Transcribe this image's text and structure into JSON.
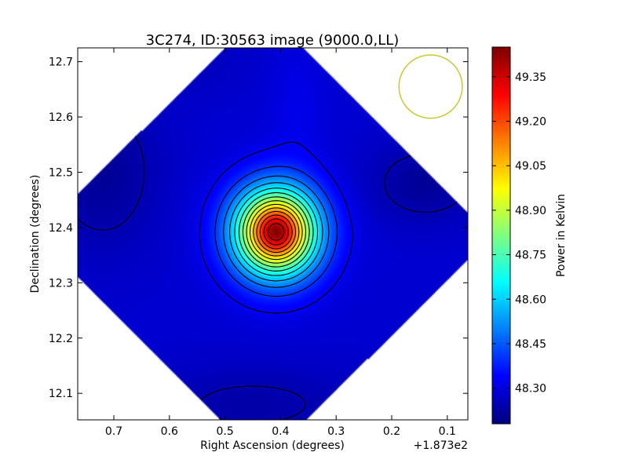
{
  "chart_data": {
    "type": "heatmap",
    "title": "3C274, ID:30563 image (9000.0,LL)",
    "xlabel": "Right Ascension (degrees)",
    "ylabel": "Declination (degrees)",
    "x_offset_label": "+1.873e2",
    "xlim": [
      0.765,
      0.063
    ],
    "ylim": [
      12.052,
      12.725
    ],
    "x_ticks": [
      0.7,
      0.6,
      0.5,
      0.4,
      0.3,
      0.2,
      0.1
    ],
    "x_tick_labels": [
      "0.7",
      "0.6",
      "0.5",
      "0.4",
      "0.3",
      "0.2",
      "0.1"
    ],
    "y_ticks": [
      12.1,
      12.2,
      12.3,
      12.4,
      12.5,
      12.6,
      12.7
    ],
    "y_tick_labels": [
      "12.1",
      "12.2",
      "12.3",
      "12.4",
      "12.5",
      "12.6",
      "12.7"
    ],
    "colorbar": {
      "label": "Power in Kelvin",
      "vmin": 48.18,
      "vmax": 49.45,
      "ticks": [
        48.3,
        48.45,
        48.6,
        48.75,
        48.9,
        49.05,
        49.2,
        49.35
      ],
      "tick_labels": [
        "48.30",
        "48.45",
        "48.60",
        "48.75",
        "48.90",
        "49.05",
        "49.20",
        "49.35"
      ],
      "colormap": "jet"
    },
    "peak": {
      "x": 0.408,
      "y": 12.392,
      "value": 49.45
    },
    "background_value": 48.28,
    "beam_circle": {
      "x": 0.13,
      "y": 12.655,
      "radius_deg": 0.057,
      "color": "#c8c832"
    },
    "contour_count": 15,
    "colors": {
      "contour": "#000000",
      "outside": "#ffffff"
    }
  }
}
